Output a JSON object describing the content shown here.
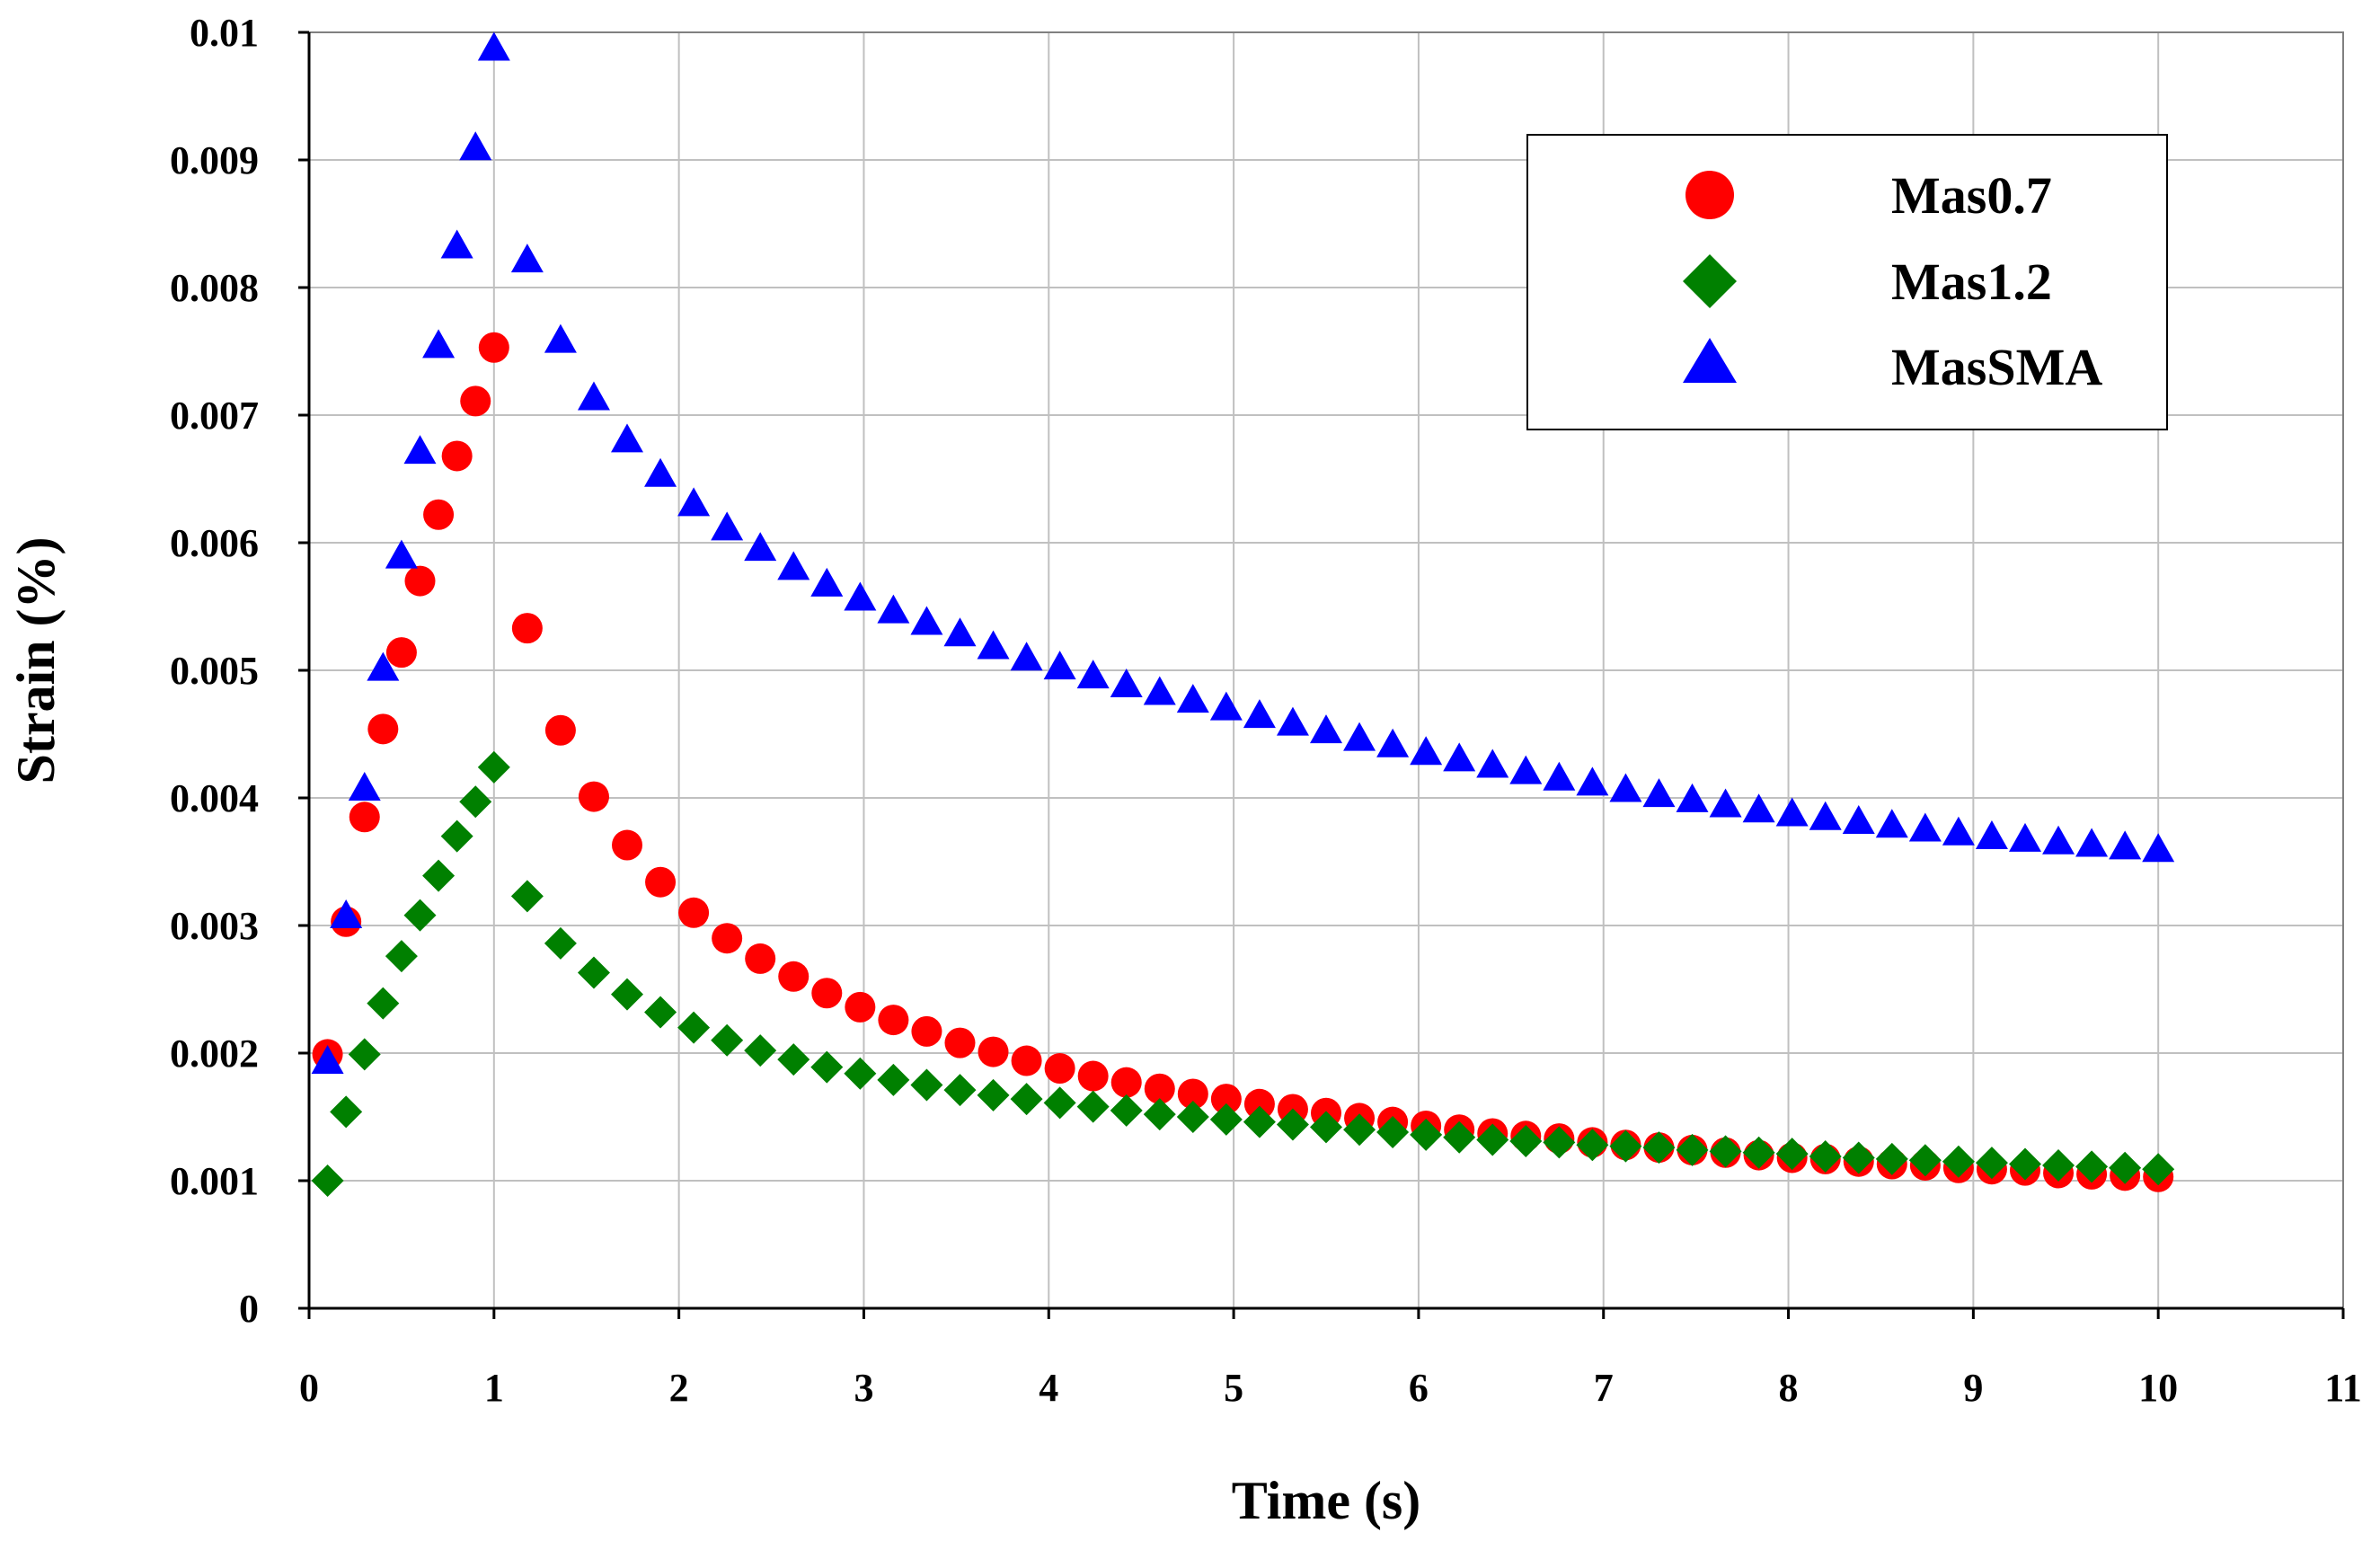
{
  "chart_data": {
    "type": "scatter",
    "title": "",
    "xlabel": "Time (s)",
    "ylabel": "Strain (%)",
    "xlim": [
      0,
      11
    ],
    "ylim": [
      0,
      0.01
    ],
    "xticks": [
      "0",
      "1",
      "2",
      "3",
      "4",
      "5",
      "6",
      "7",
      "8",
      "9",
      "10",
      "11"
    ],
    "yticks": [
      "0",
      "0.001",
      "0.002",
      "0.003",
      "0.004",
      "0.005",
      "0.006",
      "0.007",
      "0.008",
      "0.009",
      "0.01"
    ],
    "grid": true,
    "legend_position": "top-right",
    "colors": {
      "mas07": "#ff0000",
      "mas12": "#008000",
      "massma": "#0000ff"
    },
    "series": [
      {
        "name": "Mas0.7",
        "marker": "circle",
        "x": [
          0.1,
          0.2,
          0.3,
          0.4,
          0.5,
          0.6,
          0.7,
          0.8,
          0.9,
          1.0,
          1.18,
          1.36,
          1.54,
          1.72,
          1.9,
          2.08,
          2.26,
          2.44,
          2.62,
          2.8,
          2.98,
          3.16,
          3.34,
          3.52,
          3.7,
          3.88,
          4.06,
          4.24,
          4.42,
          4.6,
          4.78,
          4.96,
          5.14,
          5.32,
          5.5,
          5.68,
          5.86,
          6.04,
          6.22,
          6.4,
          6.58,
          6.76,
          6.94,
          7.12,
          7.3,
          7.48,
          7.66,
          7.84,
          8.02,
          8.2,
          8.38,
          8.56,
          8.74,
          8.92,
          9.1,
          9.28,
          9.46,
          9.64,
          9.82,
          10.0
        ],
        "y": [
          0.00199,
          0.00303,
          0.00385,
          0.00454,
          0.00514,
          0.0057,
          0.00622,
          0.00668,
          0.00711,
          0.00753,
          0.00533,
          0.00453,
          0.00401,
          0.00363,
          0.00334,
          0.0031,
          0.0029,
          0.00274,
          0.0026,
          0.00247,
          0.00236,
          0.00226,
          0.00217,
          0.00208,
          0.00201,
          0.00194,
          0.00188,
          0.00182,
          0.00177,
          0.00172,
          0.00168,
          0.00164,
          0.0016,
          0.00156,
          0.00153,
          0.00149,
          0.00146,
          0.00143,
          0.0014,
          0.00137,
          0.00135,
          0.00133,
          0.0013,
          0.00128,
          0.00126,
          0.00124,
          0.00122,
          0.0012,
          0.00118,
          0.00117,
          0.00115,
          0.00113,
          0.00112,
          0.0011,
          0.00109,
          0.00108,
          0.00106,
          0.00105,
          0.00104,
          0.00103
        ]
      },
      {
        "name": "Mas1.2",
        "marker": "diamond",
        "x": [
          0.1,
          0.2,
          0.3,
          0.4,
          0.5,
          0.6,
          0.7,
          0.8,
          0.9,
          1.0,
          1.18,
          1.36,
          1.54,
          1.72,
          1.9,
          2.08,
          2.26,
          2.44,
          2.62,
          2.8,
          2.98,
          3.16,
          3.34,
          3.52,
          3.7,
          3.88,
          4.06,
          4.24,
          4.42,
          4.6,
          4.78,
          4.96,
          5.14,
          5.32,
          5.5,
          5.68,
          5.86,
          6.04,
          6.22,
          6.4,
          6.58,
          6.76,
          6.94,
          7.12,
          7.3,
          7.48,
          7.66,
          7.84,
          8.02,
          8.2,
          8.38,
          8.56,
          8.74,
          8.92,
          9.1,
          9.28,
          9.46,
          9.64,
          9.82,
          10.0
        ],
        "y": [
          0.001,
          0.00154,
          0.00199,
          0.00239,
          0.00276,
          0.00308,
          0.00339,
          0.0037,
          0.00397,
          0.00424,
          0.00323,
          0.00286,
          0.00263,
          0.00246,
          0.00232,
          0.0022,
          0.0021,
          0.00202,
          0.00195,
          0.00189,
          0.00184,
          0.00179,
          0.00175,
          0.00171,
          0.00167,
          0.00164,
          0.00161,
          0.00158,
          0.00155,
          0.00152,
          0.0015,
          0.00148,
          0.00146,
          0.00144,
          0.00142,
          0.0014,
          0.00138,
          0.00136,
          0.00134,
          0.00132,
          0.00131,
          0.0013,
          0.00128,
          0.00127,
          0.00126,
          0.00124,
          0.00123,
          0.00122,
          0.00121,
          0.00119,
          0.00118,
          0.00117,
          0.00116,
          0.00115,
          0.00114,
          0.00113,
          0.00112,
          0.00111,
          0.0011,
          0.00109
        ]
      },
      {
        "name": "MasSMA",
        "marker": "triangle",
        "x": [
          0.1,
          0.2,
          0.3,
          0.4,
          0.5,
          0.6,
          0.7,
          0.8,
          0.9,
          1.0,
          1.18,
          1.36,
          1.54,
          1.72,
          1.9,
          2.08,
          2.26,
          2.44,
          2.62,
          2.8,
          2.98,
          3.16,
          3.34,
          3.52,
          3.7,
          3.88,
          4.06,
          4.24,
          4.42,
          4.6,
          4.78,
          4.96,
          5.14,
          5.32,
          5.5,
          5.68,
          5.86,
          6.04,
          6.22,
          6.4,
          6.58,
          6.76,
          6.94,
          7.12,
          7.3,
          7.48,
          7.66,
          7.84,
          8.02,
          8.2,
          8.38,
          8.56,
          8.74,
          8.92,
          9.1,
          9.28,
          9.46,
          9.64,
          9.82,
          10.0
        ],
        "y": [
          0.00193,
          0.00307,
          0.00407,
          0.00501,
          0.00589,
          0.00671,
          0.00754,
          0.00832,
          0.00909,
          0.00987,
          0.00821,
          0.00758,
          0.00713,
          0.0068,
          0.00653,
          0.0063,
          0.00611,
          0.00595,
          0.0058,
          0.00567,
          0.00556,
          0.00546,
          0.00537,
          0.00528,
          0.00518,
          0.00509,
          0.00502,
          0.00495,
          0.00488,
          0.00482,
          0.00476,
          0.0047,
          0.00464,
          0.00458,
          0.00452,
          0.00446,
          0.00441,
          0.00435,
          0.0043,
          0.00425,
          0.0042,
          0.00415,
          0.00411,
          0.00406,
          0.00402,
          0.00398,
          0.00394,
          0.0039,
          0.00387,
          0.00384,
          0.00381,
          0.00378,
          0.00375,
          0.00372,
          0.00369,
          0.00367,
          0.00365,
          0.00363,
          0.00361,
          0.00359
        ]
      }
    ]
  }
}
